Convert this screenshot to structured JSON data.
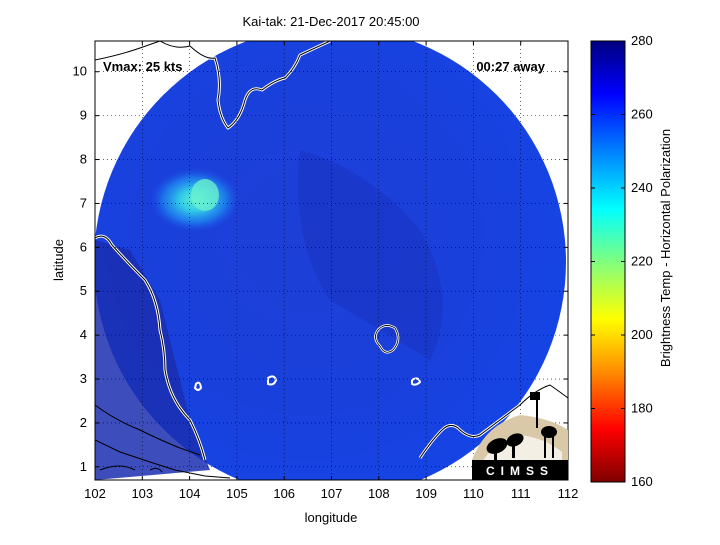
{
  "title": "Kai-tak: 21-Dec-2017 20:45:00",
  "vmax_label": "Vmax: 25 kts",
  "away_label": "00:27 away",
  "logo_text": "CIMSS",
  "map": {
    "xlabel": "longitude",
    "ylabel": "latitude",
    "xlim": [
      102,
      112
    ],
    "ylim": [
      0.7,
      10.7
    ],
    "xticks": [
      "102",
      "103",
      "104",
      "105",
      "106",
      "107",
      "108",
      "109",
      "110",
      "111",
      "112"
    ],
    "yticks": [
      "1",
      "2",
      "3",
      "4",
      "5",
      "6",
      "7",
      "8",
      "9",
      "10"
    ],
    "grid": "dotted",
    "swath_shape": "circle",
    "swath_fill": "#1a3fd8"
  },
  "colorbar": {
    "label": "Brightness Temp - Horizontal Polarization",
    "ticks": [
      "280",
      "260",
      "240",
      "220",
      "200",
      "180",
      "160"
    ],
    "range": [
      160,
      280
    ],
    "stops": [
      "#7f0000",
      "#ff0000",
      "#ff8c00",
      "#ffff00",
      "#80ff80",
      "#00ffff",
      "#0080ff",
      "#0000ff",
      "#00007f"
    ]
  }
}
